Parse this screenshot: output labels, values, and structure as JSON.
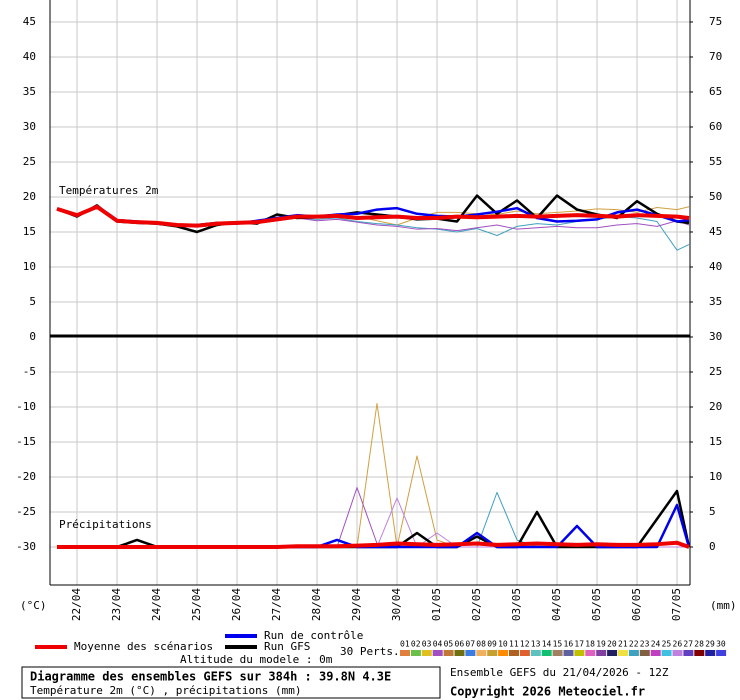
{
  "chart_data": {
    "type": "line",
    "annotations": [
      "Températures 2m",
      "Précipitations"
    ],
    "ylabel": "(°C)",
    "y2label": "(mm)",
    "x": [
      -0.5,
      0,
      0.5,
      1,
      1.5,
      2,
      2.5,
      3,
      3.5,
      4,
      4.5,
      5,
      5.5,
      6,
      6.5,
      7,
      7.5,
      8,
      8.5,
      9,
      9.5,
      10,
      10.5,
      11,
      11.5,
      12,
      12.5,
      13,
      13.5,
      14,
      14.5,
      15,
      15.3
    ],
    "xlim": [
      -0.675,
      15.325
    ],
    "xticks": [
      {
        "value": 0,
        "label": "22/04"
      },
      {
        "value": 1,
        "label": "23/04"
      },
      {
        "value": 2,
        "label": "24/04"
      },
      {
        "value": 3,
        "label": "25/04"
      },
      {
        "value": 4,
        "label": "26/04"
      },
      {
        "value": 5,
        "label": "27/04"
      },
      {
        "value": 6,
        "label": "28/04"
      },
      {
        "value": 7,
        "label": "29/04"
      },
      {
        "value": 8,
        "label": "30/04"
      },
      {
        "value": 9,
        "label": "01/05"
      },
      {
        "value": 10,
        "label": "02/05"
      },
      {
        "value": 11,
        "label": "03/05"
      },
      {
        "value": 12,
        "label": "04/05"
      },
      {
        "value": 13,
        "label": "05/05"
      },
      {
        "value": 14,
        "label": "06/05"
      },
      {
        "value": 15,
        "label": "07/05"
      }
    ],
    "ylim": [
      -35.43,
      48.14
    ],
    "yticks": [
      45,
      40,
      35,
      30,
      25,
      20,
      15,
      10,
      5,
      0,
      -5,
      -10,
      -15,
      -20,
      -25,
      -30
    ],
    "y2lim": [
      -5.43,
      78.14
    ],
    "y2ticks": [
      75,
      70,
      65,
      60,
      55,
      50,
      45,
      40,
      35,
      30,
      25,
      20,
      15,
      10,
      5,
      0
    ],
    "grid": true,
    "series": [
      {
        "color": "#d0a040",
        "width": 1,
        "values": [
          18.3,
          17.5,
          18.5,
          16.4,
          16.3,
          16.5,
          16.1,
          16.0,
          16.4,
          16.5,
          16.6,
          17.0,
          17.2,
          17.3,
          17.4,
          17.2,
          16.6,
          16.0,
          17.0,
          17.8,
          17.8,
          17.6,
          17.5,
          18.0,
          17.6,
          17.8,
          18.0,
          18.3,
          18.2,
          17.8,
          18.5,
          18.2,
          18.6
        ]
      },
      {
        "color": "#40a0c0",
        "width": 1,
        "values": [
          18.3,
          17.4,
          18.6,
          16.6,
          16.6,
          16.2,
          16.0,
          16.1,
          16.3,
          16.4,
          16.5,
          16.8,
          17.0,
          16.8,
          17.0,
          16.5,
          16.2,
          16.0,
          15.6,
          15.4,
          15.0,
          15.5,
          14.5,
          15.8,
          16.2,
          16.0,
          16.5,
          16.8,
          17.2,
          17.0,
          16.5,
          12.4,
          13.2
        ]
      },
      {
        "color": "#a050c0",
        "width": 1,
        "values": [
          18.3,
          17.6,
          18.4,
          16.8,
          16.5,
          16.4,
          15.9,
          15.7,
          16.0,
          16.2,
          16.3,
          16.6,
          17.0,
          16.6,
          16.8,
          16.4,
          16.0,
          15.8,
          15.4,
          15.5,
          15.2,
          15.6,
          16.0,
          15.4,
          15.6,
          15.8,
          15.6,
          15.6,
          16.0,
          16.2,
          15.8,
          16.6,
          16.0
        ]
      },
      {
        "color": "#d0a040",
        "width": 1,
        "axis": "y2",
        "values": [
          0,
          0,
          0,
          0,
          0,
          0,
          0,
          0,
          0,
          0,
          0,
          0,
          0,
          0,
          0,
          0,
          20.5,
          0,
          13,
          1,
          0,
          0,
          0,
          0,
          0,
          0,
          0,
          0,
          0,
          0,
          0,
          0,
          0
        ]
      },
      {
        "color": "#a050c0",
        "width": 1,
        "axis": "y2",
        "values": [
          0,
          0,
          0,
          0,
          0,
          0,
          0,
          0,
          0,
          0,
          0,
          0,
          0,
          0,
          0,
          8.5,
          0.5,
          0,
          0,
          0,
          0,
          0,
          0,
          0,
          0,
          0,
          0,
          0,
          0,
          0,
          0,
          0,
          0
        ]
      },
      {
        "color": "#40a0c0",
        "width": 1,
        "axis": "y2",
        "values": [
          0,
          0,
          0,
          0,
          0,
          0,
          0,
          0,
          0,
          0,
          0,
          0,
          0,
          0,
          0,
          0,
          0,
          0,
          0,
          0,
          0,
          0,
          7.8,
          1,
          0,
          0,
          3,
          0,
          0,
          0,
          0,
          0,
          0
        ]
      },
      {
        "color": "#c080e0",
        "width": 1,
        "axis": "y2",
        "values": [
          0,
          0,
          0,
          0,
          0,
          0,
          0,
          0,
          0,
          0,
          0,
          0,
          0,
          0,
          0,
          0,
          0,
          7,
          0,
          2,
          0,
          0,
          0,
          0,
          0,
          0,
          0,
          0,
          0,
          0,
          0,
          0,
          0
        ]
      },
      {
        "color": "#000000",
        "width": 2.5,
        "axis": "y2",
        "values": [
          0,
          0,
          0,
          0,
          1,
          0,
          0,
          0,
          0,
          0,
          0,
          0,
          0,
          0,
          0,
          0,
          0,
          0,
          2,
          0,
          0,
          1.5,
          0,
          0,
          5,
          0,
          0,
          0,
          0,
          0,
          4,
          8,
          0
        ]
      },
      {
        "color": "#0000ee",
        "width": 2.5,
        "axis": "y2",
        "values": [
          0,
          0,
          0,
          0,
          0,
          0,
          0,
          0,
          0,
          0,
          0,
          0,
          0,
          0,
          1,
          0,
          0,
          0,
          0,
          0,
          0,
          2,
          0,
          0,
          0,
          0,
          3,
          0,
          0,
          0,
          0,
          6,
          0
        ]
      },
      {
        "color": "#ee0000",
        "width": 4,
        "axis": "y2",
        "values": [
          0,
          0,
          0,
          0,
          0,
          0,
          0,
          0,
          0,
          0,
          0,
          0,
          0.1,
          0.1,
          0.1,
          0.2,
          0.3,
          0.5,
          0.4,
          0.3,
          0.4,
          0.5,
          0.3,
          0.4,
          0.5,
          0.4,
          0.3,
          0.4,
          0.3,
          0.3,
          0.4,
          0.6,
          0
        ]
      },
      {
        "name": "Run GFS",
        "color": "#000000",
        "width": 2.5,
        "values": [
          18.3,
          17.2,
          18.8,
          16.5,
          16.3,
          16.2,
          15.8,
          15.0,
          16.0,
          16.4,
          16.2,
          17.5,
          17.0,
          17.1,
          17.4,
          17.8,
          17.5,
          17.2,
          16.8,
          16.9,
          16.5,
          20.2,
          17.6,
          19.5,
          17.0,
          20.2,
          18.2,
          17.5,
          17.0,
          19.4,
          17.6,
          16.5,
          16.3
        ]
      },
      {
        "name": "Run de contrôle",
        "color": "#0000ee",
        "width": 2.5,
        "values": [
          18.3,
          17.3,
          18.7,
          16.7,
          16.5,
          16.2,
          16.0,
          16.0,
          16.3,
          16.2,
          16.6,
          17.0,
          17.4,
          17.2,
          17.5,
          17.6,
          18.2,
          18.4,
          17.6,
          17.3,
          17.2,
          17.5,
          17.9,
          18.4,
          17.0,
          16.5,
          16.6,
          16.8,
          17.8,
          18.2,
          17.4,
          16.5,
          16.7
        ]
      },
      {
        "name": "Moyenne des scénarios",
        "color": "#ee0000",
        "width": 4,
        "values": [
          18.3,
          17.4,
          18.6,
          16.6,
          16.4,
          16.3,
          16.0,
          15.9,
          16.2,
          16.3,
          16.4,
          16.8,
          17.2,
          17.2,
          17.3,
          17.0,
          17.1,
          17.2,
          17.0,
          17.0,
          17.2,
          17.1,
          17.2,
          17.3,
          17.2,
          17.3,
          17.4,
          17.3,
          17.2,
          17.4,
          17.3,
          17.2,
          17.0
        ]
      }
    ],
    "perturbation_legend": {
      "label": "30 Perts.",
      "members": [
        {
          "label": "01",
          "color": "#e0803c"
        },
        {
          "label": "02",
          "color": "#6cc04a"
        },
        {
          "label": "03",
          "color": "#e0c020"
        },
        {
          "label": "04",
          "color": "#a050c0"
        },
        {
          "label": "05",
          "color": "#c07838"
        },
        {
          "label": "06",
          "color": "#707010"
        },
        {
          "label": "07",
          "color": "#3c7ce0"
        },
        {
          "label": "08",
          "color": "#f0b060"
        },
        {
          "label": "09",
          "color": "#c8a030"
        },
        {
          "label": "10",
          "color": "#ff8c00"
        },
        {
          "label": "11",
          "color": "#b06020"
        },
        {
          "label": "12",
          "color": "#e06030"
        },
        {
          "label": "13",
          "color": "#60c0c0"
        },
        {
          "label": "14",
          "color": "#10c070"
        },
        {
          "label": "15",
          "color": "#a08060"
        },
        {
          "label": "16",
          "color": "#6060a0"
        },
        {
          "label": "17",
          "color": "#c0c000"
        },
        {
          "label": "18",
          "color": "#e060c0"
        },
        {
          "label": "19",
          "color": "#8040a0"
        },
        {
          "label": "20",
          "color": "#202060"
        },
        {
          "label": "21",
          "color": "#f0e040"
        },
        {
          "label": "22",
          "color": "#40a0c0"
        },
        {
          "label": "23",
          "color": "#806040"
        },
        {
          "label": "24",
          "color": "#c040c0"
        },
        {
          "label": "25",
          "color": "#40c0e0"
        },
        {
          "label": "26",
          "color": "#c080e0"
        },
        {
          "label": "27",
          "color": "#6040c0"
        },
        {
          "label": "28",
          "color": "#800000"
        },
        {
          "label": "29",
          "color": "#2020a0"
        },
        {
          "label": "30",
          "color": "#4040e0"
        }
      ]
    }
  },
  "footer": {
    "altitude": "Altitude du modele : 0m",
    "title": "Diagramme des ensembles GEFS sur 384h : 39.8N 4.3E",
    "subtitle": "Température 2m (°C) , précipitations (mm)",
    "run": "Ensemble GEFS du 21/04/2026 - 12Z",
    "copyright": "Copyright 2026 Meteociel.fr"
  }
}
